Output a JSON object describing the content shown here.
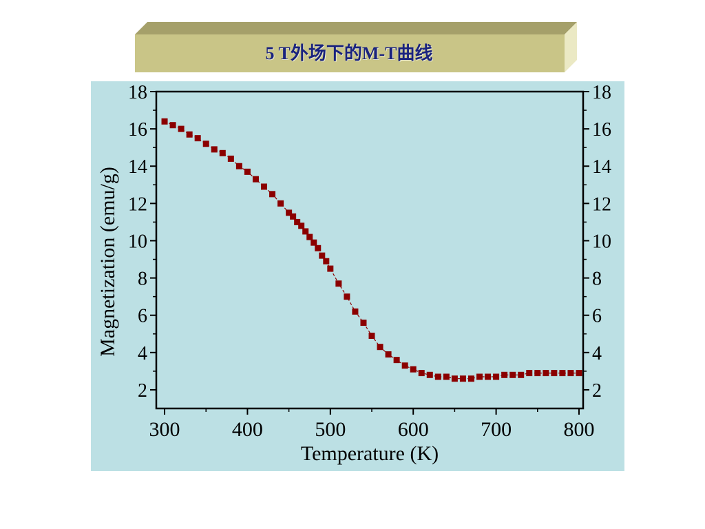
{
  "slide": {
    "title": "5 T外场下的M-T曲线"
  },
  "colors": {
    "panel_bg": "#bce0e4",
    "banner_front": "#c9c587",
    "banner_top": "#a5a06a",
    "banner_side": "#ebe9c4",
    "marker": "#8b0000",
    "title_text": "#1a237e"
  },
  "chart_data": {
    "type": "scatter",
    "title": "",
    "xlabel": "Temperature (K)",
    "ylabel": "Magnetization (emu/g)",
    "xlim": [
      290,
      805
    ],
    "ylim": [
      1,
      18
    ],
    "xticks": [
      300,
      400,
      500,
      600,
      700,
      800
    ],
    "yticks": [
      2,
      4,
      6,
      8,
      10,
      12,
      14,
      16,
      18
    ],
    "right_axis_ticks": [
      2,
      4,
      6,
      8,
      10,
      12,
      14,
      16,
      18
    ],
    "grid": false,
    "marker": "square",
    "line_style": "dashed",
    "series": [
      {
        "x": [
          300,
          310,
          320,
          330,
          340,
          350,
          360,
          370,
          380,
          390,
          400,
          410,
          420,
          430,
          440,
          450,
          455,
          460,
          465,
          470,
          475,
          480,
          485,
          490,
          495,
          500,
          510,
          520,
          530,
          540,
          550,
          560,
          570,
          580,
          590,
          600,
          610,
          620,
          630,
          640,
          650,
          660,
          670,
          680,
          690,
          700,
          710,
          720,
          730,
          740,
          750,
          760,
          770,
          780,
          790,
          800
        ],
        "y": [
          16.4,
          16.2,
          16.0,
          15.7,
          15.5,
          15.2,
          14.9,
          14.7,
          14.4,
          14.0,
          13.7,
          13.3,
          12.9,
          12.5,
          12.0,
          11.5,
          11.3,
          11.0,
          10.8,
          10.5,
          10.2,
          9.9,
          9.6,
          9.2,
          8.9,
          8.5,
          7.7,
          7.0,
          6.2,
          5.6,
          4.9,
          4.3,
          3.9,
          3.6,
          3.3,
          3.1,
          2.9,
          2.8,
          2.7,
          2.7,
          2.6,
          2.6,
          2.6,
          2.7,
          2.7,
          2.7,
          2.8,
          2.8,
          2.8,
          2.9,
          2.9,
          2.9,
          2.9,
          2.9,
          2.9,
          2.9
        ]
      }
    ]
  }
}
